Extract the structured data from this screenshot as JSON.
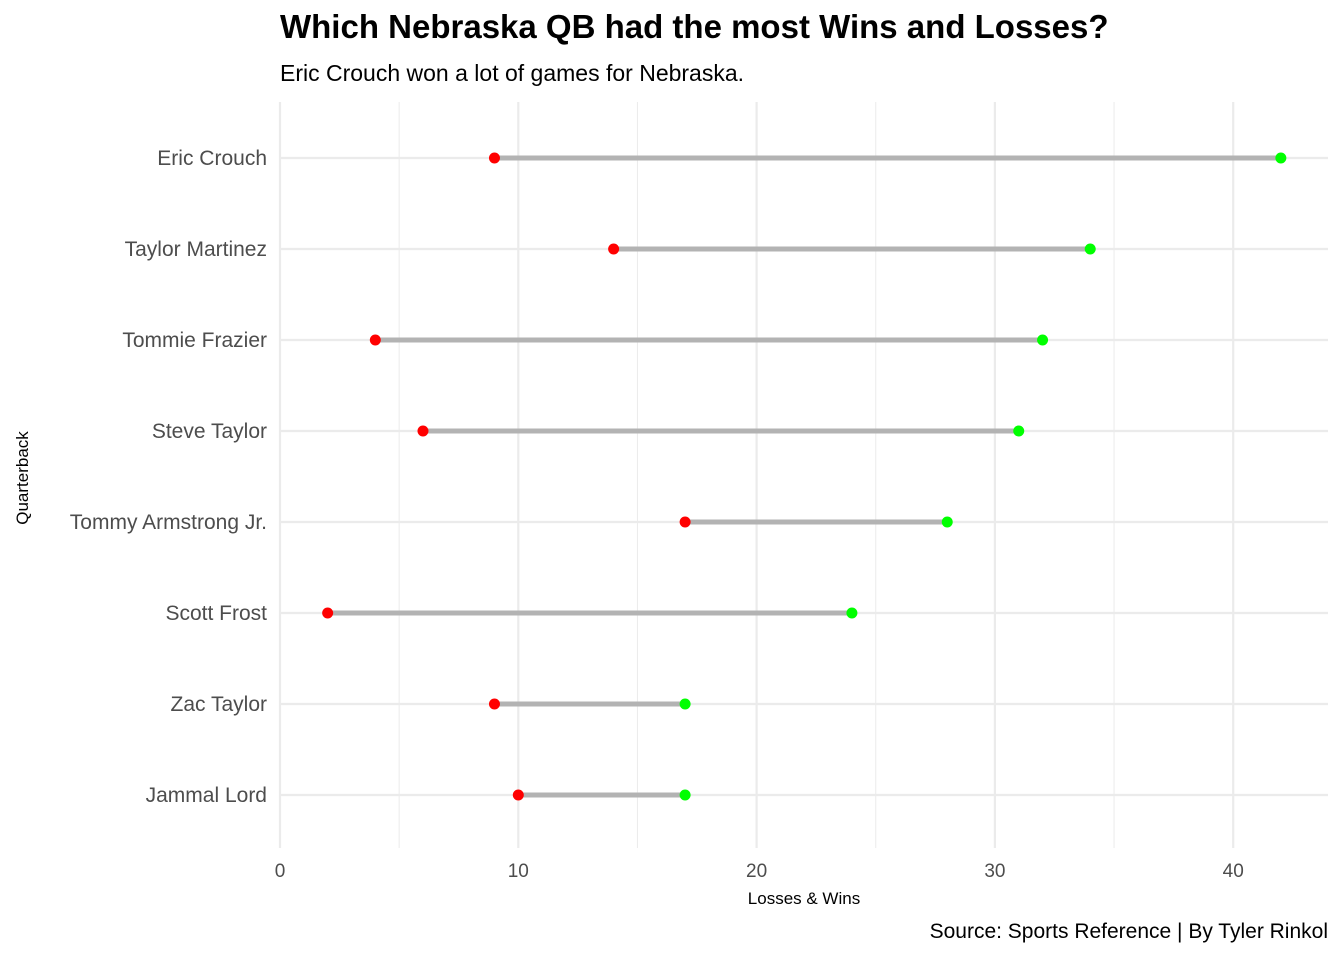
{
  "chart_data": {
    "type": "dumbbell",
    "title": "Which Nebraska QB had the most Wins and Losses?",
    "subtitle": "Eric Crouch won a lot of games for Nebraska.",
    "caption": "Source: Sports Reference | By Tyler Rinkol",
    "xlabel": "Losses & Wins",
    "ylabel": "Quarterback",
    "xlim": [
      0,
      44
    ],
    "xticks": [
      0,
      10,
      20,
      30,
      40
    ],
    "grid": true,
    "colors": {
      "losses": "#ff0000",
      "wins": "#00ff00",
      "segment": "#b3b3b3",
      "grid": "#ebebeb"
    },
    "categories": [
      "Eric Crouch",
      "Taylor Martinez",
      "Tommie Frazier",
      "Steve Taylor",
      "Tommy Armstrong Jr.",
      "Scott Frost",
      "Zac Taylor",
      "Jammal Lord"
    ],
    "series": [
      {
        "values": [
          9,
          14,
          4,
          6,
          17,
          2,
          9,
          10
        ]
      },
      {
        "values": [
          42,
          34,
          32,
          31,
          28,
          24,
          17,
          17
        ]
      }
    ]
  }
}
